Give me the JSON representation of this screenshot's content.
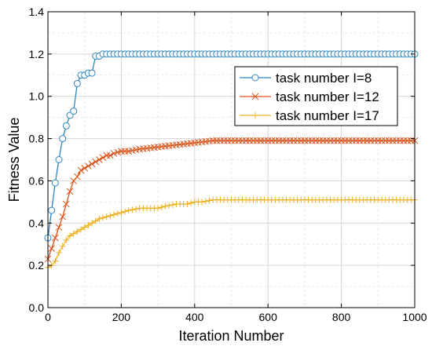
{
  "chart_data": {
    "type": "line",
    "xlabel": "Iteration Number",
    "ylabel": "Fitness Value",
    "xlim": [
      0,
      1000
    ],
    "ylim": [
      0,
      1.4
    ],
    "xticks": [
      "0",
      "200",
      "400",
      "600",
      "800",
      "1000"
    ],
    "yticks": [
      "0.0",
      "0.2",
      "0.4",
      "0.6",
      "0.8",
      "1.0",
      "1.2",
      "1.4"
    ],
    "grid": true,
    "legend_position": "top-right",
    "series": [
      {
        "name": "task number I=8",
        "color": "#2E86C1",
        "marker": "circle",
        "x": [
          0,
          10,
          20,
          30,
          40,
          50,
          60,
          70,
          80,
          90,
          100,
          110,
          120,
          130,
          140,
          150,
          160,
          170,
          180,
          190,
          200,
          250,
          300,
          350,
          400,
          450,
          500,
          550,
          600,
          650,
          700,
          750,
          800,
          850,
          900,
          950,
          1000
        ],
        "y": [
          0.33,
          0.46,
          0.59,
          0.7,
          0.8,
          0.86,
          0.91,
          0.93,
          1.06,
          1.1,
          1.1,
          1.11,
          1.11,
          1.19,
          1.19,
          1.2,
          1.2,
          1.2,
          1.2,
          1.2,
          1.2,
          1.2,
          1.2,
          1.2,
          1.2,
          1.2,
          1.2,
          1.2,
          1.2,
          1.2,
          1.2,
          1.2,
          1.2,
          1.2,
          1.2,
          1.2,
          1.2
        ]
      },
      {
        "name": "task number I=12",
        "color": "#D95319",
        "marker": "x",
        "x": [
          0,
          10,
          20,
          30,
          40,
          50,
          60,
          70,
          80,
          90,
          100,
          110,
          120,
          130,
          140,
          150,
          160,
          170,
          180,
          200,
          220,
          250,
          300,
          350,
          400,
          450,
          500,
          550,
          600,
          650,
          700,
          750,
          800,
          850,
          900,
          950,
          1000
        ],
        "y": [
          0.23,
          0.28,
          0.33,
          0.38,
          0.43,
          0.49,
          0.55,
          0.6,
          0.62,
          0.65,
          0.66,
          0.67,
          0.68,
          0.69,
          0.7,
          0.71,
          0.72,
          0.72,
          0.73,
          0.74,
          0.74,
          0.75,
          0.76,
          0.77,
          0.78,
          0.79,
          0.79,
          0.79,
          0.79,
          0.79,
          0.79,
          0.79,
          0.79,
          0.79,
          0.79,
          0.79,
          0.79
        ]
      },
      {
        "name": "task number I=17",
        "color": "#EDB120",
        "marker": "plus",
        "x": [
          0,
          10,
          20,
          30,
          40,
          50,
          60,
          70,
          80,
          90,
          100,
          120,
          140,
          160,
          180,
          200,
          220,
          250,
          280,
          300,
          320,
          350,
          380,
          400,
          420,
          450,
          500,
          550,
          600,
          650,
          700,
          750,
          800,
          850,
          900,
          950,
          1000
        ],
        "y": [
          0.19,
          0.2,
          0.22,
          0.26,
          0.29,
          0.32,
          0.34,
          0.35,
          0.36,
          0.37,
          0.38,
          0.4,
          0.42,
          0.43,
          0.44,
          0.45,
          0.46,
          0.47,
          0.47,
          0.47,
          0.48,
          0.49,
          0.49,
          0.5,
          0.5,
          0.51,
          0.51,
          0.51,
          0.51,
          0.51,
          0.51,
          0.51,
          0.51,
          0.51,
          0.51,
          0.51,
          0.51
        ]
      }
    ]
  }
}
